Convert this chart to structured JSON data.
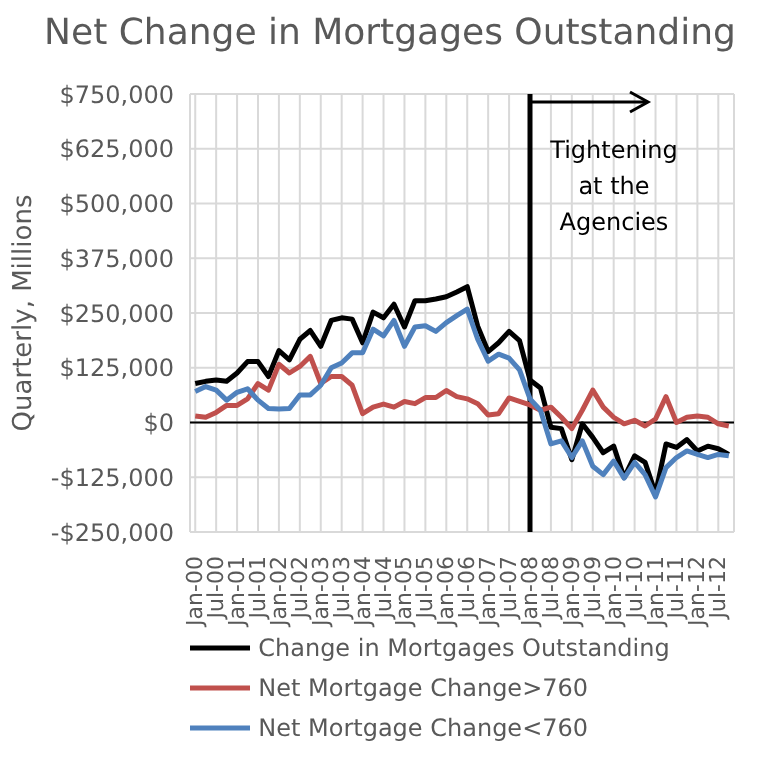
{
  "chart_data": {
    "type": "line",
    "title": "Net Change in Mortgages Outstanding",
    "ylabel": "Quarterly, Millions",
    "categories": [
      "Jan-00",
      null,
      "Jul-00",
      null,
      "Jan-01",
      null,
      "Jul-01",
      null,
      "Jan-02",
      null,
      "Jul-02",
      null,
      "Jan-03",
      null,
      "Jul-03",
      null,
      "Jan-04",
      null,
      "Jul-04",
      null,
      "Jan-05",
      null,
      "Jul-05",
      null,
      "Jan-06",
      null,
      "Jul-06",
      null,
      "Jan-07",
      null,
      "Jul-07",
      null,
      "Jan-08",
      null,
      "Jul-08",
      null,
      "Jan-09",
      null,
      "Jul-09",
      null,
      "Jan-10",
      null,
      "Jul-10",
      null,
      "Jan-11",
      null,
      "Jul-11",
      null,
      "Jan-12",
      null,
      "Jul-12",
      null
    ],
    "series": [
      {
        "name": "Change in Mortgages Outstanding",
        "color": "#000000",
        "values": [
          89000,
          94000,
          97000,
          94000,
          113000,
          139000,
          139000,
          105000,
          164000,
          143000,
          190000,
          210000,
          174000,
          233000,
          239000,
          236000,
          182000,
          252000,
          239000,
          270000,
          218000,
          278000,
          278000,
          282000,
          287000,
          298000,
          310000,
          220000,
          162000,
          182000,
          208000,
          187000,
          97000,
          79000,
          -11000,
          -14000,
          -85000,
          -3000,
          -34000,
          -69000,
          -54000,
          -126000,
          -76000,
          -91000,
          -162000,
          -49000,
          -57000,
          -39000,
          -65000,
          -54000,
          -60000,
          -73000
        ]
      },
      {
        "name": "Net Mortgage Change>760",
        "color": "#c0504d",
        "values": [
          15000,
          12000,
          23000,
          39000,
          39000,
          54000,
          89000,
          74000,
          133000,
          113000,
          128000,
          151000,
          89000,
          105000,
          105000,
          85000,
          20000,
          35000,
          42000,
          35000,
          48000,
          43000,
          57000,
          57000,
          73000,
          59000,
          54000,
          43000,
          17000,
          20000,
          56000,
          48000,
          40000,
          28000,
          35000,
          12000,
          -14000,
          28000,
          74000,
          35000,
          12000,
          -3000,
          5000,
          -8000,
          8000,
          59000,
          0,
          12000,
          15000,
          12000,
          -3000,
          -8000
        ]
      },
      {
        "name": "Net Mortgage Change<760",
        "color": "#4f81bd",
        "values": [
          71000,
          82000,
          74000,
          51000,
          69000,
          77000,
          51000,
          32000,
          31000,
          32000,
          63000,
          63000,
          85000,
          125000,
          136000,
          159000,
          159000,
          213000,
          198000,
          233000,
          174000,
          218000,
          221000,
          208000,
          228000,
          244000,
          259000,
          190000,
          140000,
          156000,
          147000,
          120000,
          54000,
          28000,
          -49000,
          -42000,
          -80000,
          -42000,
          -100000,
          -119000,
          -88000,
          -127000,
          -91000,
          -119000,
          -170000,
          -103000,
          -80000,
          -65000,
          -73000,
          -80000,
          -73000,
          -76000
        ]
      }
    ],
    "ylim": [
      -250000,
      750000
    ],
    "yticks": [
      {
        "value": -250000,
        "label": "-$250,000"
      },
      {
        "value": -125000,
        "label": "-$125,000"
      },
      {
        "value": 0,
        "label": "$0"
      },
      {
        "value": 125000,
        "label": "$125,000"
      },
      {
        "value": 250000,
        "label": "$250,000"
      },
      {
        "value": 375000,
        "label": "$375,000"
      },
      {
        "value": 500000,
        "label": "$500,000"
      },
      {
        "value": 625000,
        "label": "$625,000"
      },
      {
        "value": 750000,
        "label": "$750,000"
      }
    ],
    "ref_lines": [
      {
        "axis": "x",
        "value": "Jan-08",
        "label": "Tightening at the Agencies",
        "color": "#000000"
      }
    ],
    "grid": true,
    "legend": "bottom",
    "marker": "none",
    "line_style": "solid"
  }
}
